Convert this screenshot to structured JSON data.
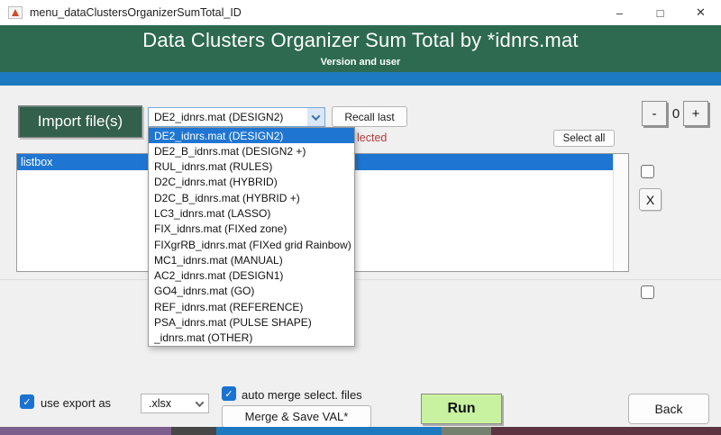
{
  "colors": {
    "header-green": "#2d6a50",
    "accent-blue": "#1e7ac0",
    "button-green": "#33604c",
    "selection-blue": "#1f76d2",
    "run-green": "#c9f2a0",
    "alert-red": "#b23b3f",
    "check-blue": "#1a73d1"
  },
  "titlebar": {
    "title": "menu_dataClustersOrganizerSumTotal_ID",
    "minimize_glyph": "–",
    "maximize_glyph": "□",
    "close_glyph": "✕"
  },
  "header": {
    "title": "Data Clusters Organizer Sum Total by *idnrs.mat",
    "subtitle": "Version and user"
  },
  "toolbar": {
    "import_label": "Import file(s)",
    "recall_label": "Recall last",
    "selected_fragment": "lected",
    "select_all_label": "Select all",
    "minus_label": "-",
    "counter_value": "0",
    "plus_label": "+",
    "clear_label": "X"
  },
  "file_dropdown": {
    "value": "DE2_idnrs.mat (DESIGN2)",
    "selected_index": 0,
    "items": [
      "DE2_idnrs.mat (DESIGN2)",
      "DE2_B_idnrs.mat (DESIGN2 +)",
      "RUL_idnrs.mat (RULES)",
      "D2C_idnrs.mat (HYBRID)",
      "D2C_B_idnrs.mat (HYBRID +)",
      "LC3_idnrs.mat (LASSO)",
      "FIX_idnrs.mat (FIXed zone)",
      "FIXgrRB_idnrs.mat (FIXed grid Rainbow)",
      "MC1_idnrs.mat (MANUAL)",
      "AC2_idnrs.mat (DESIGN1)",
      "GO4_idnrs.mat (GO)",
      "REF_idnrs.mat (REFERENCE)",
      "PSA_idnrs.mat (PULSE SHAPE)",
      "_idnrs.mat (OTHER)"
    ]
  },
  "listbox": {
    "selected_index": 0,
    "items": [
      "listbox"
    ]
  },
  "footer": {
    "use_export_label": "use export as",
    "export_format": ".xlsx",
    "auto_merge_label": "auto merge select. files",
    "merge_label": "Merge & Save VAL*",
    "run_label": "Run",
    "back_label": "Back"
  },
  "icons": {
    "check": "✓"
  }
}
